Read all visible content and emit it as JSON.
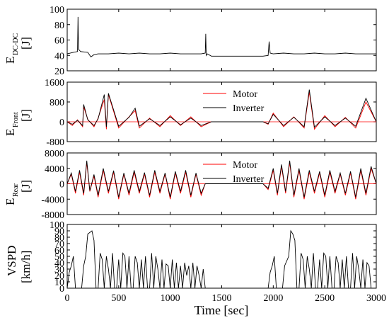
{
  "figure": {
    "xlabel": "Time [sec]",
    "x_ticks": [
      "0",
      "500",
      "1000",
      "1500",
      "2000",
      "2500",
      "3000"
    ]
  },
  "panels": [
    {
      "ylabel_main": "E",
      "ylabel_sub": "DC-DC",
      "ylabel_unit": "[J]",
      "y_ticks": [
        "20",
        "40",
        "60",
        "80",
        "100"
      ],
      "legend": []
    },
    {
      "ylabel_main": "E",
      "ylabel_sub": "Front",
      "ylabel_unit": "[J]",
      "y_ticks": [
        "-800",
        "0",
        "800",
        "1600"
      ],
      "legend": [
        "Motor",
        "Inverter"
      ]
    },
    {
      "ylabel_main": "E",
      "ylabel_sub": "Rear",
      "ylabel_unit": "[J]",
      "y_ticks": [
        "-8000",
        "-4000",
        "0",
        "4000",
        "8000"
      ],
      "legend": [
        "Motor",
        "Inverter"
      ]
    },
    {
      "ylabel_main": "VSPD",
      "ylabel_sub": "",
      "ylabel_unit": "[km/h]",
      "y_ticks": [
        "0",
        "10",
        "20",
        "30",
        "40",
        "50",
        "60",
        "70",
        "80",
        "90",
        "100"
      ],
      "legend": []
    }
  ],
  "colors": {
    "motor": "#ff0000",
    "inverter": "#000000",
    "zero_line": "#ff0000",
    "axis": "#000000"
  },
  "chart_data": [
    {
      "type": "line",
      "xlim": [
        0,
        3000
      ],
      "ylim": [
        20,
        100
      ],
      "series": [
        {
          "x": [
            0,
            60,
            100,
            105,
            110,
            130,
            200,
            230,
            260,
            300,
            400,
            500,
            600,
            700,
            800,
            900,
            1000,
            1100,
            1200,
            1300,
            1340,
            1345,
            1350,
            1360,
            1400,
            1500,
            1600,
            1700,
            1800,
            1900,
            1950,
            1960,
            1970,
            2000,
            2100,
            2200,
            2300,
            2400,
            2500,
            2600,
            2700,
            2800,
            2900,
            3000
          ],
          "values": [
            42,
            44,
            45,
            90,
            48,
            45,
            44,
            38,
            41,
            42,
            42,
            43,
            42,
            43,
            42,
            42,
            43,
            42,
            42,
            42,
            43,
            68,
            40,
            42,
            39,
            39,
            39,
            39,
            39,
            39,
            40,
            58,
            43,
            42,
            43,
            42,
            42,
            43,
            42,
            42,
            43,
            42,
            42,
            42
          ]
        }
      ]
    },
    {
      "type": "line",
      "xlim": [
        0,
        3000
      ],
      "ylim": [
        -800,
        1600
      ],
      "series": [
        {
          "name": "Motor",
          "x": [
            0,
            50,
            100,
            150,
            160,
            200,
            260,
            300,
            360,
            380,
            400,
            500,
            600,
            660,
            700,
            800,
            900,
            1000,
            1100,
            1200,
            1300,
            1400,
            1500,
            1600,
            1700,
            1800,
            1900,
            1950,
            2000,
            2100,
            2200,
            2300,
            2350,
            2400,
            2500,
            2600,
            2700,
            2800,
            2900,
            3000
          ],
          "values": [
            0,
            -150,
            80,
            -200,
            600,
            100,
            -200,
            150,
            900,
            -300,
            1100,
            -250,
            200,
            450,
            -250,
            150,
            -200,
            250,
            -150,
            200,
            -200,
            0,
            0,
            0,
            0,
            0,
            0,
            -100,
            350,
            -200,
            200,
            -250,
            1200,
            -300,
            250,
            -200,
            180,
            -250,
            800,
            0
          ]
        },
        {
          "name": "Inverter",
          "x": [
            0,
            50,
            100,
            150,
            160,
            200,
            260,
            300,
            360,
            380,
            400,
            500,
            600,
            660,
            700,
            800,
            900,
            1000,
            1100,
            1200,
            1300,
            1400,
            1500,
            1600,
            1700,
            1800,
            1900,
            1950,
            2000,
            2100,
            2200,
            2300,
            2350,
            2400,
            2500,
            2600,
            2700,
            2800,
            2900,
            3000
          ],
          "values": [
            0,
            -100,
            60,
            -150,
            700,
            80,
            -150,
            120,
            1100,
            -200,
            1150,
            -180,
            180,
            550,
            -180,
            120,
            -150,
            200,
            -120,
            150,
            -150,
            0,
            0,
            0,
            0,
            0,
            0,
            -80,
            300,
            -150,
            180,
            -200,
            1300,
            -220,
            200,
            -150,
            150,
            -180,
            950,
            0
          ]
        }
      ]
    },
    {
      "type": "line",
      "xlim": [
        0,
        3000
      ],
      "ylim": [
        -8000,
        8000
      ],
      "series": [
        {
          "name": "Motor",
          "x": [
            0,
            40,
            80,
            120,
            160,
            190,
            220,
            260,
            300,
            350,
            400,
            450,
            500,
            550,
            600,
            650,
            700,
            750,
            800,
            850,
            900,
            950,
            1000,
            1050,
            1100,
            1150,
            1200,
            1250,
            1300,
            1340,
            1400,
            1500,
            1600,
            1700,
            1800,
            1900,
            1950,
            2000,
            2040,
            2080,
            2120,
            2160,
            2200,
            2250,
            2300,
            2350,
            2400,
            2450,
            2500,
            2550,
            2600,
            2650,
            2700,
            2750,
            2800,
            2850,
            2900,
            2950,
            3000
          ],
          "values": [
            0,
            2500,
            -2500,
            3000,
            -3000,
            5500,
            -2000,
            2000,
            -3500,
            3500,
            -2500,
            3000,
            -4000,
            2500,
            -3000,
            3000,
            -2500,
            2500,
            -3500,
            3000,
            -2500,
            2500,
            -4000,
            2800,
            -2500,
            3000,
            -3500,
            2500,
            -3000,
            0,
            0,
            0,
            0,
            0,
            0,
            0,
            -1500,
            3500,
            -3000,
            4500,
            -2500,
            5500,
            -3500,
            3500,
            -4000,
            3000,
            -2500,
            2800,
            -3500,
            3000,
            -2500,
            2500,
            -3000,
            2800,
            -4000,
            3500,
            -3000,
            4000,
            0
          ]
        },
        {
          "name": "Inverter",
          "x": [
            0,
            40,
            80,
            120,
            160,
            190,
            220,
            260,
            300,
            350,
            400,
            450,
            500,
            550,
            600,
            650,
            700,
            750,
            800,
            850,
            900,
            950,
            1000,
            1050,
            1100,
            1150,
            1200,
            1250,
            1300,
            1340,
            1400,
            1500,
            1600,
            1700,
            1800,
            1900,
            1950,
            2000,
            2040,
            2080,
            2120,
            2160,
            2200,
            2250,
            2300,
            2350,
            2400,
            2450,
            2500,
            2550,
            2600,
            2650,
            2700,
            2750,
            2800,
            2850,
            2900,
            2950,
            3000
          ],
          "values": [
            0,
            2800,
            -2000,
            3500,
            -2500,
            6000,
            -1800,
            2400,
            -3000,
            4000,
            -2000,
            3400,
            -3500,
            2800,
            -2500,
            3500,
            -2000,
            2900,
            -3000,
            3500,
            -2000,
            2800,
            -3500,
            3200,
            -2000,
            3500,
            -3000,
            2800,
            -2500,
            0,
            0,
            0,
            0,
            0,
            0,
            0,
            -1200,
            4000,
            -2500,
            5000,
            -2000,
            6000,
            -3000,
            4000,
            -3500,
            3500,
            -2000,
            3200,
            -3000,
            3500,
            -2000,
            2800,
            -2500,
            3200,
            -3500,
            4000,
            -2500,
            4500,
            0
          ]
        }
      ]
    },
    {
      "type": "line",
      "xlim": [
        0,
        3000
      ],
      "ylim": [
        0,
        100
      ],
      "series": [
        {
          "x": [
            0,
            20,
            40,
            60,
            80,
            100,
            120,
            140,
            160,
            180,
            200,
            240,
            260,
            280,
            300,
            320,
            340,
            360,
            380,
            400,
            420,
            440,
            460,
            480,
            500,
            520,
            540,
            560,
            580,
            600,
            620,
            640,
            660,
            680,
            700,
            720,
            740,
            760,
            780,
            800,
            820,
            840,
            860,
            880,
            900,
            920,
            940,
            960,
            980,
            1000,
            1020,
            1040,
            1060,
            1080,
            1100,
            1120,
            1140,
            1160,
            1180,
            1200,
            1220,
            1240,
            1260,
            1280,
            1300,
            1320,
            1340,
            1360,
            1950,
            1970,
            1990,
            2010,
            2030,
            2050,
            2070,
            2090,
            2110,
            2150,
            2170,
            2190,
            2210,
            2230,
            2250,
            2270,
            2290,
            2310,
            2330,
            2350,
            2370,
            2390,
            2410,
            2430,
            2450,
            2470,
            2490,
            2510,
            2530,
            2550,
            2570,
            2590,
            2610,
            2630,
            2650,
            2670,
            2690,
            2710,
            2730,
            2750,
            2770,
            2790,
            2810,
            2830,
            2850,
            2870,
            2890,
            2910,
            2930,
            2950,
            3000
          ],
          "values": [
            0,
            25,
            35,
            50,
            0,
            0,
            0,
            0,
            35,
            50,
            85,
            90,
            75,
            0,
            0,
            55,
            45,
            0,
            50,
            30,
            0,
            55,
            0,
            0,
            45,
            0,
            55,
            50,
            0,
            50,
            0,
            0,
            50,
            40,
            0,
            45,
            0,
            50,
            0,
            0,
            55,
            0,
            50,
            30,
            0,
            45,
            0,
            38,
            35,
            0,
            45,
            0,
            40,
            0,
            35,
            0,
            40,
            20,
            35,
            0,
            40,
            0,
            35,
            20,
            0,
            30,
            0,
            0,
            0,
            25,
            35,
            50,
            0,
            0,
            0,
            0,
            35,
            50,
            90,
            85,
            75,
            0,
            0,
            55,
            45,
            0,
            50,
            30,
            0,
            55,
            0,
            0,
            45,
            0,
            55,
            50,
            0,
            50,
            0,
            0,
            50,
            40,
            0,
            45,
            0,
            50,
            0,
            0,
            55,
            0,
            50,
            30,
            0,
            45,
            0,
            40,
            35,
            0,
            0
          ]
        }
      ]
    }
  ]
}
